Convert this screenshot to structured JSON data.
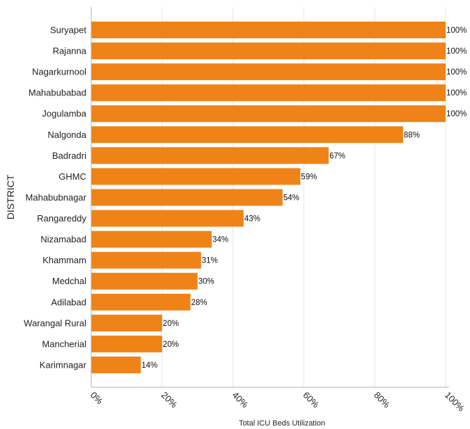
{
  "chart_data": {
    "type": "bar",
    "orientation": "horizontal",
    "categories": [
      "Suryapet",
      "Rajanna",
      "Nagarkurnool",
      "Mahabubabad",
      "Jogulamba",
      "Nalgonda",
      "Badradri",
      "GHMC",
      "Mahabubnagar",
      "Rangareddy",
      "Nizamabad",
      "Khammam",
      "Medchal",
      "Adilabad",
      "Warangal Rural",
      "Mancherial",
      "Karimnagar"
    ],
    "values": [
      100,
      100,
      100,
      100,
      100,
      88,
      67,
      59,
      54,
      43,
      34,
      31,
      30,
      28,
      20,
      20,
      14
    ],
    "value_labels": [
      "100%",
      "100%",
      "100%",
      "100%",
      "100%",
      "88%",
      "67%",
      "59%",
      "54%",
      "43%",
      "34%",
      "31%",
      "30%",
      "28%",
      "20%",
      "20%",
      "14%"
    ],
    "title": "",
    "xlabel": "Total ICU Beds Utilization",
    "ylabel": "DISTRICT",
    "xlim": [
      0,
      100
    ],
    "x_ticks": [
      0,
      20,
      40,
      60,
      80,
      100
    ],
    "x_tick_labels": [
      "0%",
      "20%",
      "40%",
      "60%",
      "80%",
      "100%"
    ],
    "grid": "vertical",
    "legend": "none",
    "bar_color": "#ef8317",
    "grid_color": "#e6e6e6",
    "axis_color": "#b0b0b0"
  }
}
